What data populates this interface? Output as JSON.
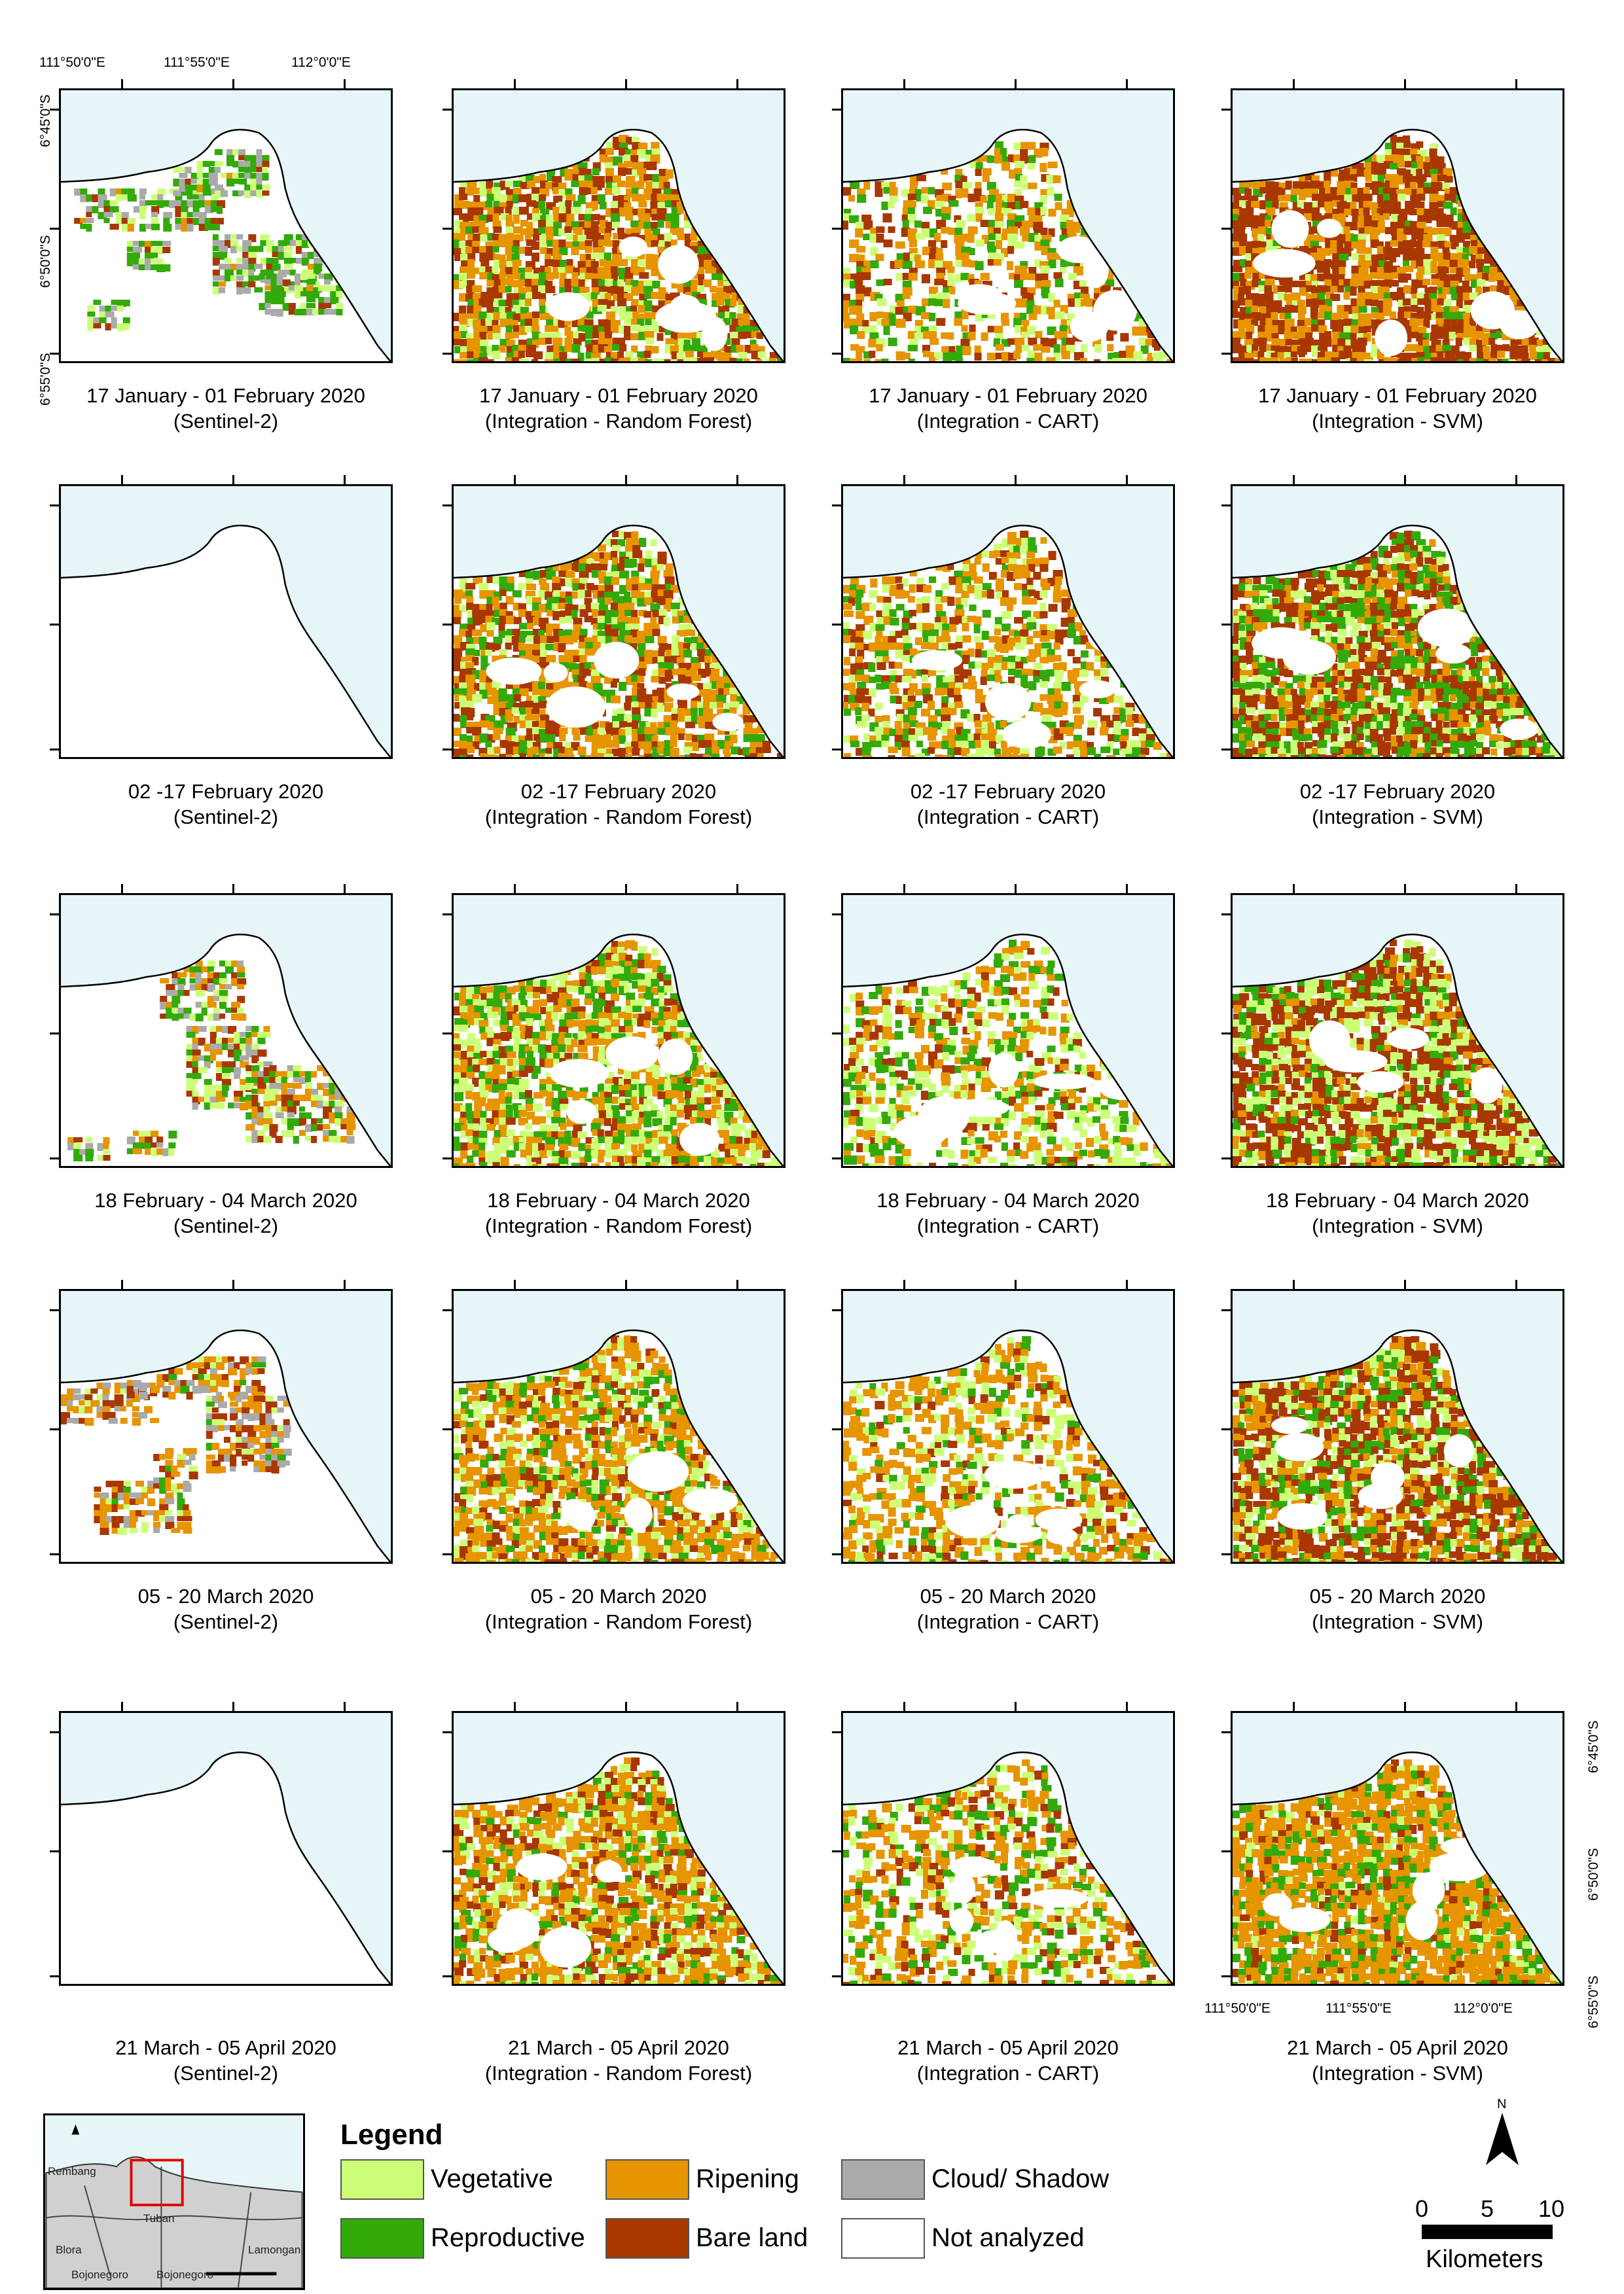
{
  "colors": {
    "sea": "#e6f6f8",
    "vegetative": "#ccff77",
    "reproductive": "#33aa0a",
    "ripening": "#e69500",
    "bare_land": "#a83800",
    "cloud_shadow": "#aaaaaa",
    "not_analyzed": "#ffffff"
  },
  "axes": {
    "lon_labels": [
      "111°50'0\"E",
      "111°55'0\"E",
      "112°0'0\"E"
    ],
    "lat_labels": [
      "6°45'0\"S",
      "6°50'0\"S",
      "6°55'0\"S"
    ]
  },
  "rows": [
    {
      "period": "17 January - 01 February 2020"
    },
    {
      "period": "02 -17 February 2020"
    },
    {
      "period": "18 February - 04 March 2020"
    },
    {
      "period": "05 - 20 March 2020"
    },
    {
      "period": "21 March - 05 April 2020"
    }
  ],
  "columns": [
    {
      "source": "(Sentinel-2)",
      "kind": "sentinel"
    },
    {
      "source": "(Integration - Random Forest)",
      "kind": "rf"
    },
    {
      "source": "(Integration - CART)",
      "kind": "cart"
    },
    {
      "source": "(Integration - SVM)",
      "kind": "svm"
    }
  ],
  "sentinel_coverage": [
    "partial",
    "none",
    "partial",
    "partial",
    "none"
  ],
  "legend": {
    "title": "Legend",
    "items": [
      {
        "label": "Vegetative",
        "color_key": "vegetative"
      },
      {
        "label": "Ripening",
        "color_key": "ripening"
      },
      {
        "label": "Cloud/ Shadow",
        "color_key": "cloud_shadow"
      },
      {
        "label": "Reproductive",
        "color_key": "reproductive"
      },
      {
        "label": "Bare land",
        "color_key": "bare_land"
      },
      {
        "label": "Not analyzed",
        "color_key": "not_analyzed"
      }
    ]
  },
  "inset_map": {
    "labels": [
      "Rembang",
      "Tuban",
      "Blora",
      "Bojonegoro",
      "Bojonegoro",
      "Lamongan"
    ]
  },
  "scale_bar": {
    "ticks": [
      "0",
      "5",
      "10"
    ],
    "unit": "Kilometers"
  },
  "north_arrow": {
    "label": "N"
  }
}
